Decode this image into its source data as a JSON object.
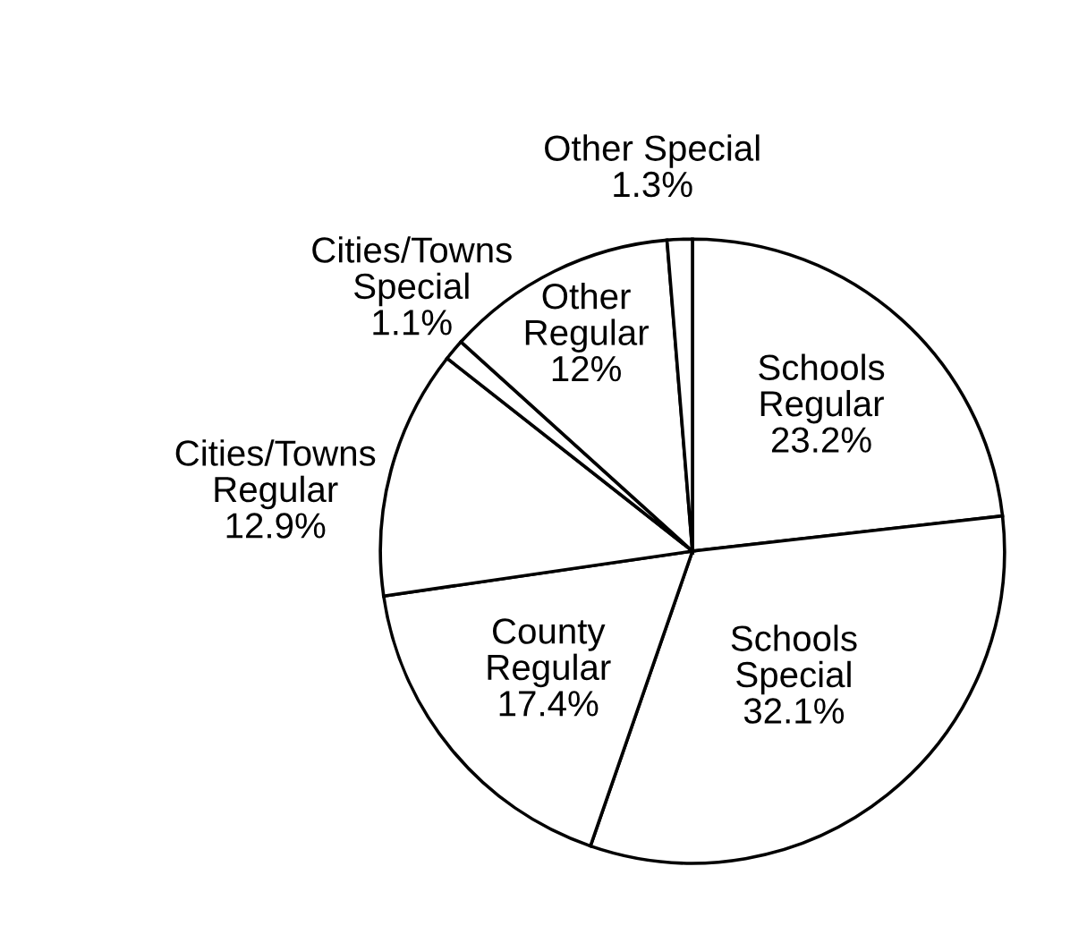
{
  "chart_data": {
    "type": "pie",
    "categories": [
      "Schools\nRegular",
      "Schools\nSpecial",
      "County\nRegular",
      "Cities/Towns\nRegular",
      "Cities/Towns\nSpecial",
      "Other\nRegular",
      "Other Special"
    ],
    "values": [
      23.2,
      32.1,
      17.4,
      12.9,
      1.1,
      12,
      1.3
    ],
    "value_labels": [
      "23.2%",
      "32.1%",
      "17.4%",
      "12.9%",
      "1.1%",
      "12%",
      "1.3%"
    ],
    "colors": [
      "#ffffff",
      "#ffffff",
      "#ffffff",
      "#ffffff",
      "#ffffff",
      "#ffffff",
      "#ffffff"
    ],
    "legend": false
  }
}
